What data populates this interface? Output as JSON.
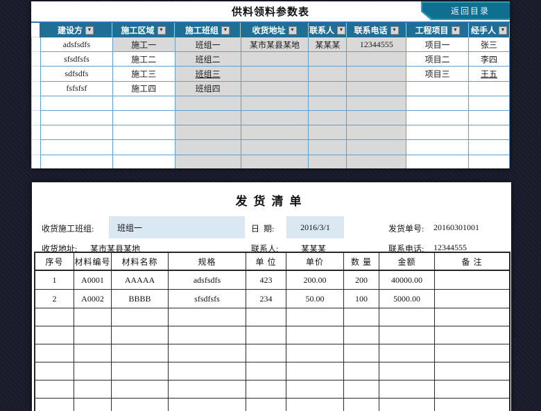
{
  "app": {
    "background_color": "#191b2a",
    "accent_teal": "#1e6e95",
    "grid_blue": "#5f9fce",
    "gray_cell_color": "#d9d9d9",
    "field_blue": "#d9e8f3"
  },
  "top_panel": {
    "title": "供料领料参数表",
    "return_button_label": "返回目录",
    "dropdown_icon": "▼",
    "columns": [
      "建设方",
      "施工区域",
      "施工班组",
      "收货地址",
      "联系人",
      "联系电话",
      "工程项目",
      "经手人"
    ],
    "rows": [
      {
        "cells": [
          {
            "t": "adsfsdfs"
          },
          {
            "t": "施工一",
            "g": 1
          },
          {
            "t": "班组一",
            "g": 1
          },
          {
            "t": "某市某县某地",
            "g": 1
          },
          {
            "t": "某某某",
            "g": 1
          },
          {
            "t": "12344555",
            "g": 1
          },
          {
            "t": "项目一"
          },
          {
            "t": "张三"
          }
        ]
      },
      {
        "cells": [
          {
            "t": "sfsdfsfs"
          },
          {
            "t": "施工二"
          },
          {
            "t": "班组二",
            "g": 1
          },
          {
            "t": "",
            "g": 1
          },
          {
            "t": "",
            "g": 1
          },
          {
            "t": "",
            "g": 1
          },
          {
            "t": "项目二"
          },
          {
            "t": "李四"
          }
        ]
      },
      {
        "cells": [
          {
            "t": "sdfsdfs"
          },
          {
            "t": "施工三"
          },
          {
            "t": "班组三",
            "g": 1,
            "u": 1
          },
          {
            "t": "",
            "g": 1
          },
          {
            "t": "",
            "g": 1
          },
          {
            "t": "",
            "g": 1
          },
          {
            "t": "项目三"
          },
          {
            "t": "王五",
            "u": 1
          }
        ]
      },
      {
        "cells": [
          {
            "t": "fsfsfsf"
          },
          {
            "t": "施工四"
          },
          {
            "t": "班组四",
            "g": 1
          },
          {
            "t": "",
            "g": 1
          },
          {
            "t": "",
            "g": 1
          },
          {
            "t": "",
            "g": 1
          },
          {
            "t": ""
          },
          {
            "t": ""
          }
        ]
      },
      {
        "cells": [
          {
            "t": ""
          },
          {
            "t": ""
          },
          {
            "t": "",
            "g": 1
          },
          {
            "t": "",
            "g": 1
          },
          {
            "t": "",
            "g": 1
          },
          {
            "t": "",
            "g": 1
          },
          {
            "t": ""
          },
          {
            "t": ""
          }
        ]
      },
      {
        "cells": [
          {
            "t": ""
          },
          {
            "t": ""
          },
          {
            "t": "",
            "g": 1
          },
          {
            "t": "",
            "g": 1
          },
          {
            "t": "",
            "g": 1
          },
          {
            "t": "",
            "g": 1
          },
          {
            "t": ""
          },
          {
            "t": ""
          }
        ]
      },
      {
        "cells": [
          {
            "t": ""
          },
          {
            "t": ""
          },
          {
            "t": "",
            "g": 1
          },
          {
            "t": "",
            "g": 1
          },
          {
            "t": "",
            "g": 1
          },
          {
            "t": "",
            "g": 1
          },
          {
            "t": ""
          },
          {
            "t": ""
          }
        ]
      },
      {
        "cells": [
          {
            "t": ""
          },
          {
            "t": ""
          },
          {
            "t": "",
            "g": 1
          },
          {
            "t": "",
            "g": 1
          },
          {
            "t": "",
            "g": 1
          },
          {
            "t": "",
            "g": 1
          },
          {
            "t": ""
          },
          {
            "t": ""
          }
        ]
      },
      {
        "cells": [
          {
            "t": ""
          },
          {
            "t": ""
          },
          {
            "t": "",
            "g": 1
          },
          {
            "t": "",
            "g": 1
          },
          {
            "t": "",
            "g": 1
          },
          {
            "t": "",
            "g": 1
          },
          {
            "t": ""
          },
          {
            "t": ""
          }
        ]
      }
    ]
  },
  "bottom_panel": {
    "title": "发货清单",
    "form": {
      "team_label": "收货施工班组:",
      "team_value": "班组一",
      "date_label": "日  期:",
      "date_value": "2016/3/1",
      "order_no_label": "发货单号:",
      "order_no_value": "20160301001",
      "address_label": "收货地址:",
      "address_value": "某市某县某地",
      "contact_label": "联系人:",
      "contact_value": "某某某",
      "phone_label": "联系电话:",
      "phone_value": "12344555"
    },
    "table": {
      "headers": [
        "序号",
        "材料编号",
        "材料名称",
        "规格",
        "单 位",
        "单价",
        "数 量",
        "金额",
        "备  注"
      ],
      "rows": [
        [
          "1",
          "A0001",
          "AAAAA",
          "adsfsdfs",
          "423",
          "200.00",
          "200",
          "40000.00",
          ""
        ],
        [
          "2",
          "A0002",
          "BBBB",
          "sfsdfsfs",
          "234",
          "50.00",
          "100",
          "5000.00",
          ""
        ]
      ],
      "empty_row_count": 6
    }
  }
}
